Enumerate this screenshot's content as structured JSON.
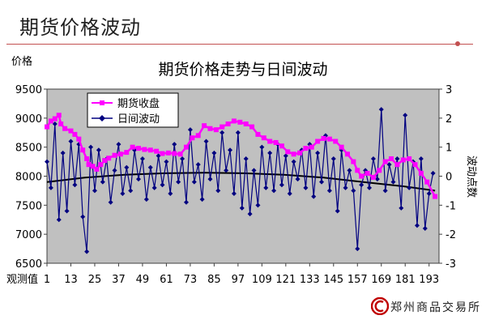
{
  "slide": {
    "title": "期货价格波动",
    "company_logo_text": "郑州商品交易所"
  },
  "colors": {
    "plot_bg": "#c0c0c0",
    "price_series": "#ff00ff",
    "volatility_series": "#000080",
    "trend_line": "#000000",
    "title_rule": "#c25050"
  },
  "chart_data": {
    "type": "line",
    "title": "期货价格走势与日间波动",
    "ylabel": "价格",
    "y2label": "波动点数",
    "xlabel": "观测值",
    "ylim": [
      6500,
      9500
    ],
    "y2lim": [
      -3,
      3
    ],
    "yticks": [
      6500,
      7000,
      7500,
      8000,
      8500,
      9000,
      9500
    ],
    "y2ticks": [
      -3,
      -2,
      -1,
      0,
      1,
      2,
      3
    ],
    "xlim": [
      1,
      198
    ],
    "xticks": [
      1,
      13,
      25,
      37,
      49,
      61,
      73,
      85,
      97,
      109,
      121,
      133,
      145,
      157,
      169,
      181,
      193
    ],
    "grid": false,
    "legend_position": "top-left",
    "series": [
      {
        "name": "期货收盘",
        "axis": "left",
        "marker": "square",
        "color": "#ff00ff",
        "x": [
          1,
          3,
          5,
          7,
          8,
          10,
          13,
          15,
          17,
          19,
          21,
          22,
          24,
          26,
          28,
          30,
          32,
          35,
          38,
          41,
          44,
          47,
          50,
          53,
          56,
          59,
          62,
          65,
          68,
          71,
          74,
          77,
          80,
          83,
          86,
          89,
          92,
          95,
          98,
          101,
          104,
          107,
          110,
          113,
          116,
          119,
          122,
          125,
          128,
          131,
          134,
          137,
          140,
          143,
          146,
          149,
          152,
          155,
          157,
          159,
          162,
          165,
          168,
          171,
          174,
          177,
          180,
          183,
          186,
          189,
          192,
          196
        ],
        "values": [
          8850,
          8950,
          8990,
          9050,
          8900,
          8820,
          8780,
          8720,
          8640,
          8450,
          8300,
          8200,
          8170,
          8120,
          8200,
          8270,
          8310,
          8360,
          8380,
          8410,
          8500,
          8480,
          8460,
          8450,
          8430,
          8390,
          8400,
          8390,
          8380,
          8500,
          8660,
          8700,
          8870,
          8820,
          8800,
          8850,
          8900,
          8950,
          8930,
          8900,
          8850,
          8720,
          8660,
          8600,
          8580,
          8520,
          8420,
          8380,
          8400,
          8480,
          8500,
          8600,
          8650,
          8640,
          8600,
          8500,
          8380,
          8250,
          8100,
          8000,
          8050,
          7980,
          8100,
          8250,
          8300,
          8200,
          8280,
          8300,
          8200,
          8050,
          7900,
          7650
        ]
      },
      {
        "name": "日间波动",
        "axis": "right",
        "marker": "diamond",
        "color": "#000080",
        "x": [
          1,
          3,
          5,
          7,
          9,
          11,
          13,
          15,
          17,
          19,
          21,
          23,
          25,
          27,
          29,
          31,
          33,
          35,
          37,
          39,
          41,
          43,
          45,
          47,
          49,
          51,
          53,
          55,
          57,
          59,
          61,
          63,
          65,
          67,
          69,
          71,
          73,
          75,
          77,
          79,
          81,
          83,
          85,
          87,
          89,
          91,
          93,
          95,
          97,
          99,
          101,
          103,
          105,
          107,
          109,
          111,
          113,
          115,
          117,
          119,
          121,
          123,
          125,
          127,
          129,
          131,
          133,
          135,
          137,
          139,
          141,
          143,
          145,
          147,
          149,
          151,
          153,
          155,
          157,
          159,
          161,
          163,
          165,
          167,
          169,
          171,
          173,
          175,
          177,
          179,
          181,
          183,
          185,
          187,
          189,
          191,
          193,
          195
        ],
        "values": [
          0.5,
          -0.4,
          1.8,
          -1.5,
          0.8,
          -1.2,
          1.2,
          -0.3,
          1.1,
          -1.4,
          -2.6,
          1.0,
          -0.5,
          0.9,
          -0.2,
          0.6,
          -0.9,
          0.2,
          1.1,
          -0.6,
          0.3,
          -0.5,
          0.9,
          -0.1,
          0.6,
          -0.8,
          0.3,
          -0.4,
          0.7,
          -0.3,
          0.5,
          -0.6,
          1.1,
          -0.2,
          0.6,
          -0.9,
          1.6,
          -0.2,
          0.4,
          -0.8,
          1.2,
          -0.1,
          0.8,
          -0.5,
          1.5,
          0.2,
          0.9,
          -0.6,
          1.5,
          -1.1,
          0.6,
          -1.3,
          0.2,
          -1.0,
          1.0,
          -0.4,
          0.8,
          -0.5,
          1.1,
          -0.3,
          0.7,
          -0.6,
          0.5,
          -0.1,
          0.9,
          -0.4,
          1.1,
          -0.7,
          0.8,
          -0.2,
          1.4,
          -0.5,
          0.6,
          -1.2,
          0.9,
          -0.4,
          0.2,
          -0.5,
          -2.5,
          -0.3,
          0.2,
          -0.4,
          0.6,
          -0.1,
          2.3,
          -0.5,
          0.4,
          -0.2,
          0.6,
          -1.1,
          2.1,
          -0.4,
          0.5,
          -1.7,
          0.6,
          -1.8,
          -0.6,
          0.1
        ]
      },
      {
        "name": "",
        "axis": "right",
        "kind": "trend",
        "color": "#000000",
        "x": [
          1,
          20,
          40,
          60,
          80,
          100,
          120,
          140,
          160,
          180,
          196
        ],
        "values": [
          -0.2,
          -0.05,
          0.05,
          0.1,
          0.12,
          0.1,
          0.05,
          -0.05,
          -0.2,
          -0.35,
          -0.5
        ]
      }
    ]
  }
}
